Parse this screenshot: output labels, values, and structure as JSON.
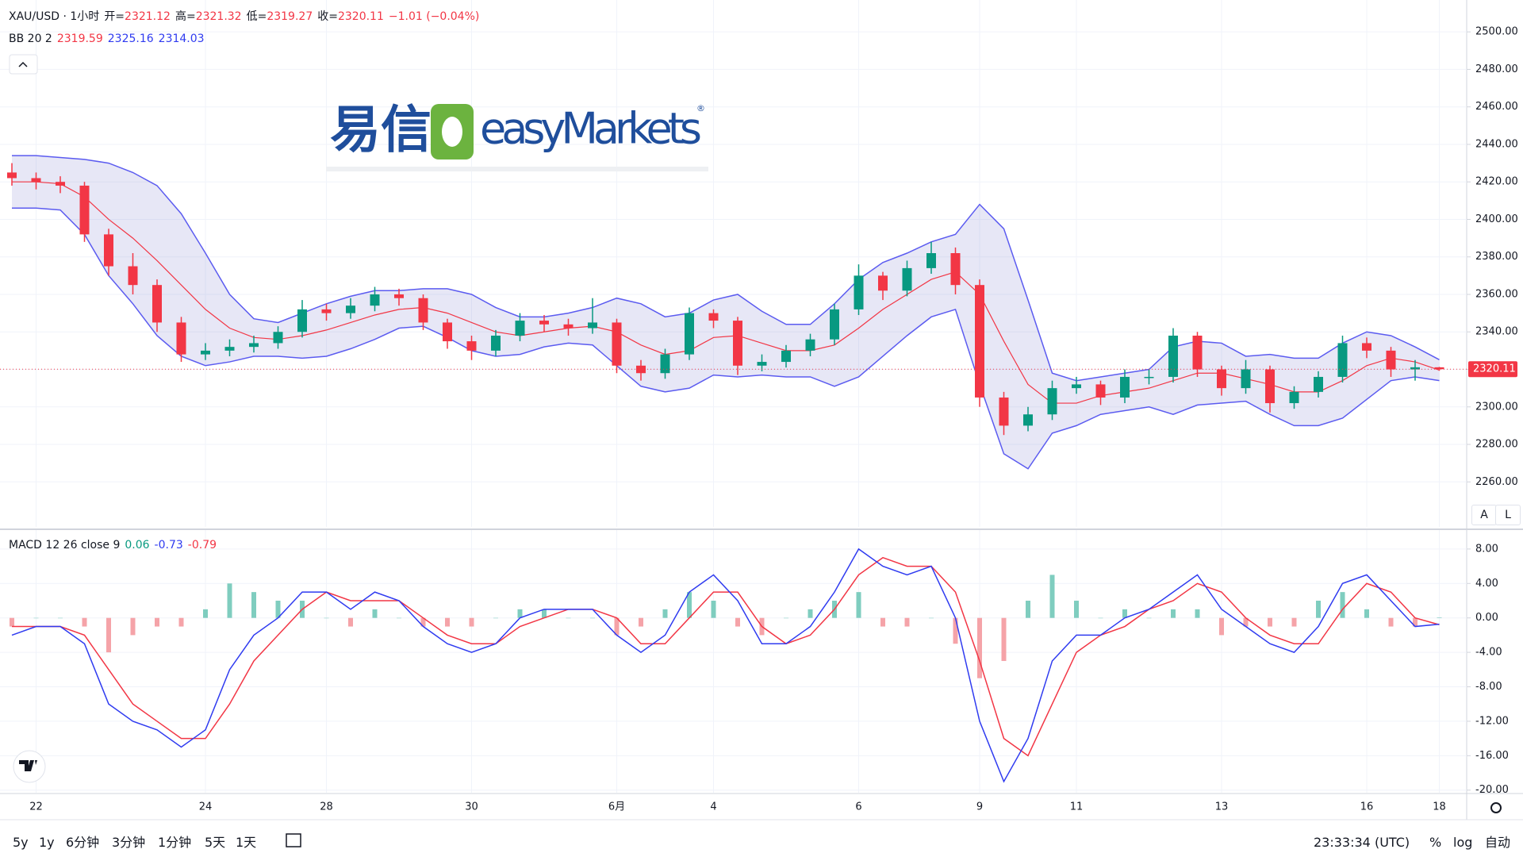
{
  "header": {
    "symbol": "XAU/USD · 1小时",
    "open_label": "开=",
    "high_label": "高=",
    "low_label": "低=",
    "close_label": "收=",
    "change_text": "−1.01 (−0.04%)"
  },
  "logo": {
    "cn": "易信",
    "en": "easyMarkets",
    "mark": "®"
  },
  "toolbar": {
    "ranges": [
      "5y",
      "1y",
      "6分钟",
      "3分钟",
      "1分钟",
      "5天",
      "1天"
    ],
    "clock": "23:33:34 (UTC)",
    "percent": "%",
    "log": "log",
    "auto": "自动",
    "scale_buttons": [
      "A",
      "L"
    ]
  },
  "chart_data": {
    "type": "candlestick",
    "categories": [
      null,
      "22",
      null,
      null,
      null,
      null,
      null,
      null,
      "24",
      null,
      null,
      null,
      null,
      "28",
      null,
      null,
      null,
      null,
      null,
      "30",
      null,
      null,
      null,
      null,
      null,
      "6月",
      null,
      null,
      null,
      "4",
      null,
      null,
      null,
      null,
      null,
      "6",
      null,
      null,
      null,
      null,
      "9",
      null,
      null,
      null,
      "11",
      null,
      null,
      null,
      null,
      null,
      "13",
      null,
      null,
      null,
      null,
      null,
      "16",
      null,
      null,
      "18"
    ],
    "open": [
      2425,
      2422,
      2420,
      2418,
      2392,
      2375,
      2365,
      2345,
      2328,
      2330,
      2332,
      2334,
      2340,
      2352,
      2350,
      2354,
      2360,
      2358,
      2345,
      2335,
      2330,
      2338,
      2346,
      2344,
      2342,
      2345,
      2322,
      2318,
      2328,
      2350,
      2346,
      2322,
      2324,
      2330,
      2336,
      2352,
      2370,
      2362,
      2374,
      2382,
      2365,
      2305,
      2290,
      2296,
      2310,
      2312,
      2305,
      2316,
      2316,
      2338,
      2320,
      2310,
      2320,
      2302,
      2308,
      2316,
      2334,
      2330,
      2320,
      2321.12
    ],
    "high": [
      2430,
      2425,
      2423,
      2420,
      2395,
      2382,
      2368,
      2348,
      2334,
      2336,
      2338,
      2343,
      2357,
      2355,
      2358,
      2364,
      2363,
      2360,
      2347,
      2338,
      2341,
      2350,
      2349,
      2347,
      2358,
      2347,
      2325,
      2331,
      2353,
      2352,
      2348,
      2328,
      2333,
      2339,
      2355,
      2376,
      2372,
      2378,
      2388,
      2385,
      2368,
      2308,
      2300,
      2314,
      2316,
      2314,
      2320,
      2320,
      2342,
      2340,
      2322,
      2325,
      2322,
      2311,
      2319,
      2338,
      2337,
      2332,
      2325,
      2321.32
    ],
    "low": [
      2418,
      2416,
      2414,
      2388,
      2370,
      2360,
      2340,
      2324,
      2325,
      2327,
      2329,
      2331,
      2337,
      2346,
      2347,
      2351,
      2354,
      2341,
      2331,
      2325,
      2327,
      2335,
      2340,
      2338,
      2339,
      2318,
      2314,
      2315,
      2325,
      2342,
      2317,
      2319,
      2321,
      2327,
      2333,
      2349,
      2357,
      2359,
      2371,
      2360,
      2300,
      2285,
      2287,
      2293,
      2307,
      2301,
      2302,
      2312,
      2313,
      2316,
      2306,
      2307,
      2297,
      2299,
      2305,
      2313,
      2326,
      2316,
      2314,
      2319.27
    ],
    "close": [
      2422,
      2420,
      2418,
      2392,
      2375,
      2365,
      2345,
      2328,
      2330,
      2332,
      2334,
      2340,
      2352,
      2350,
      2354,
      2360,
      2358,
      2345,
      2335,
      2330,
      2338,
      2346,
      2344,
      2342,
      2345,
      2322,
      2318,
      2328,
      2350,
      2346,
      2322,
      2324,
      2330,
      2336,
      2352,
      2370,
      2362,
      2374,
      2382,
      2365,
      2305,
      2290,
      2296,
      2310,
      2312,
      2305,
      2316,
      2316,
      2338,
      2320,
      2310,
      2320,
      2302,
      2308,
      2316,
      2334,
      2330,
      2320,
      2321.12,
      2320.11
    ],
    "up_color": "#089981",
    "down_color": "#f23645",
    "bands": {
      "name": "BB 20 2",
      "line_color": "#5b5bf0",
      "middle_color": "#f23645",
      "fill": "rgba(110,110,200,0.17)",
      "upper": [
        2434,
        2434,
        2433,
        2432,
        2430,
        2425,
        2418,
        2403,
        2382,
        2360,
        2347,
        2345,
        2350,
        2355,
        2359,
        2362,
        2362,
        2363,
        2363,
        2360,
        2353,
        2348,
        2348,
        2350,
        2353,
        2358,
        2355,
        2348,
        2350,
        2357,
        2360,
        2351,
        2344,
        2344,
        2355,
        2368,
        2377,
        2382,
        2388,
        2392,
        2408,
        2395,
        2357,
        2318,
        2314,
        2316,
        2318,
        2320,
        2332,
        2335,
        2334,
        2327,
        2328,
        2326,
        2326,
        2334,
        2340,
        2338,
        2332,
        2325.16
      ],
      "middle": [
        2420,
        2420,
        2419,
        2412,
        2400,
        2390,
        2378,
        2365,
        2352,
        2342,
        2337,
        2336,
        2338,
        2341,
        2345,
        2349,
        2352,
        2353,
        2350,
        2345,
        2340,
        2338,
        2340,
        2342,
        2343,
        2340,
        2333,
        2328,
        2330,
        2337,
        2338,
        2334,
        2330,
        2330,
        2333,
        2342,
        2352,
        2360,
        2368,
        2372,
        2360,
        2335,
        2312,
        2302,
        2302,
        2306,
        2308,
        2310,
        2314,
        2318,
        2318,
        2315,
        2312,
        2308,
        2308,
        2314,
        2322,
        2326,
        2324,
        2319.59
      ],
      "lower": [
        2406,
        2406,
        2405,
        2392,
        2370,
        2355,
        2338,
        2327,
        2322,
        2324,
        2327,
        2327,
        2326,
        2327,
        2331,
        2336,
        2342,
        2343,
        2337,
        2330,
        2327,
        2328,
        2332,
        2334,
        2333,
        2322,
        2311,
        2308,
        2310,
        2317,
        2316,
        2317,
        2316,
        2316,
        2311,
        2316,
        2327,
        2338,
        2348,
        2352,
        2312,
        2275,
        2267,
        2286,
        2290,
        2296,
        2298,
        2300,
        2296,
        2301,
        2302,
        2303,
        2296,
        2290,
        2290,
        2294,
        2304,
        2314,
        2316,
        2314.03
      ]
    },
    "ylim": [
      2236,
      2517
    ],
    "yticks": [
      {
        "value": 2260,
        "label": "2260.00"
      },
      {
        "value": 2280,
        "label": "2280.00"
      },
      {
        "value": 2300,
        "label": "2300.00"
      },
      {
        "value": 2320,
        "label": "2320.00"
      },
      {
        "value": 2340,
        "label": "2340.00"
      },
      {
        "value": 2360,
        "label": "2360.00"
      },
      {
        "value": 2380,
        "label": "2380.00"
      },
      {
        "value": 2400,
        "label": "2400.00"
      },
      {
        "value": 2420,
        "label": "2420.00"
      },
      {
        "value": 2440,
        "label": "2440.00"
      },
      {
        "value": 2460,
        "label": "2460.00"
      },
      {
        "value": 2480,
        "label": "2480.00"
      },
      {
        "value": 2500,
        "label": "2500.00"
      }
    ],
    "grid": true,
    "macd": {
      "name": "MACD 12 26 close 9",
      "macd_color": "#2f3bf0",
      "signal_color": "#f23645",
      "pos_color": "#7fcdbf",
      "neg_color": "#f5a3a8",
      "macd": [
        -2,
        -1,
        -1,
        -3,
        -10,
        -12,
        -13,
        -15,
        -13,
        -6,
        -2,
        0,
        3,
        3,
        1,
        3,
        2,
        -1,
        -3,
        -4,
        -3,
        0,
        1,
        1,
        1,
        -2,
        -4,
        -2,
        3,
        5,
        2,
        -3,
        -3,
        -1,
        3,
        8,
        6,
        5,
        6,
        0,
        -12,
        -19,
        -14,
        -5,
        -2,
        -2,
        0,
        1,
        3,
        5,
        1,
        -1,
        -3,
        -4,
        -1,
        4,
        5,
        2,
        -1,
        -0.73
      ],
      "signal": [
        -1,
        -1,
        -1,
        -2,
        -6,
        -10,
        -12,
        -14,
        -14,
        -10,
        -5,
        -2,
        1,
        3,
        2,
        2,
        2,
        0,
        -2,
        -3,
        -3,
        -1,
        0,
        1,
        1,
        0,
        -3,
        -3,
        0,
        3,
        3,
        -1,
        -3,
        -2,
        1,
        5,
        7,
        6,
        6,
        3,
        -5,
        -14,
        -16,
        -10,
        -4,
        -2,
        -1,
        1,
        2,
        4,
        3,
        0,
        -2,
        -3,
        -3,
        1,
        4,
        3,
        0,
        -0.79
      ],
      "histogram": [
        -1,
        0,
        0,
        -1,
        -4,
        -2,
        -1,
        -1,
        1,
        4,
        3,
        2,
        2,
        0,
        -1,
        1,
        0,
        -1,
        -1,
        -1,
        0,
        1,
        1,
        0,
        0,
        -2,
        -1,
        1,
        3,
        2,
        -1,
        -2,
        0,
        1,
        2,
        3,
        -1,
        -1,
        0,
        -3,
        -7,
        -5,
        2,
        5,
        2,
        0,
        1,
        0,
        1,
        1,
        -2,
        -1,
        -1,
        -1,
        2,
        3,
        1,
        -1,
        -1,
        0.06
      ],
      "ylim": [
        -20.3,
        10.2
      ],
      "yticks": [
        {
          "value": 8,
          "label": "8.00"
        },
        {
          "value": 4,
          "label": "4.00"
        },
        {
          "value": 0,
          "label": "0.00"
        },
        {
          "value": -4,
          "label": "-4.00"
        },
        {
          "value": -8,
          "label": "-8.00"
        },
        {
          "value": -12,
          "label": "-12.00"
        },
        {
          "value": -16,
          "label": "-16.00"
        },
        {
          "value": -20,
          "label": "-20.00"
        }
      ]
    }
  }
}
